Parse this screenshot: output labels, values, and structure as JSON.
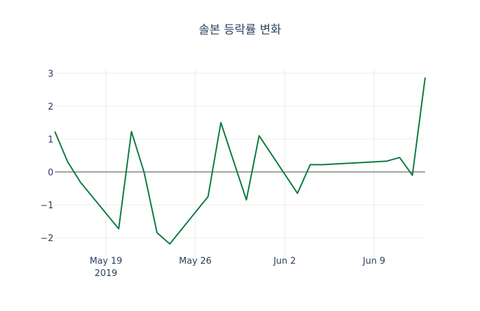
{
  "chart_data": {
    "type": "line",
    "title": "솔본 등락률 변화",
    "xlabel": "",
    "ylabel": "",
    "x": [
      "2019-05-15",
      "2019-05-16",
      "2019-05-17",
      "2019-05-20",
      "2019-05-21",
      "2019-05-22",
      "2019-05-23",
      "2019-05-24",
      "2019-05-27",
      "2019-05-28",
      "2019-05-30",
      "2019-05-31",
      "2019-06-03",
      "2019-06-04",
      "2019-06-05",
      "2019-06-10",
      "2019-06-11",
      "2019-06-12",
      "2019-06-13"
    ],
    "series": [
      {
        "name": "등락률",
        "color": "#0b7a3e",
        "values": [
          1.23,
          0.31,
          -0.31,
          -1.73,
          1.23,
          -0.02,
          -1.85,
          -2.19,
          -0.75,
          1.5,
          -0.85,
          1.1,
          -0.65,
          0.22,
          0.22,
          0.33,
          0.44,
          -0.1,
          2.87
        ]
      }
    ],
    "xlim": [
      "2019-05-15",
      "2019-06-13"
    ],
    "ylim": [
      -2.5,
      3.15
    ],
    "yticks": [
      3,
      2,
      1,
      0,
      -1,
      -2
    ],
    "ytick_labels": [
      "3",
      "2",
      "1",
      "0",
      "−1",
      "−2"
    ],
    "xticks": [
      "2019-05-19",
      "2019-05-26",
      "2019-06-02",
      "2019-06-09"
    ],
    "xtick_labels": [
      "May 19",
      "May 26",
      "Jun 2",
      "Jun 9"
    ],
    "xtick_sublabel": "2019",
    "grid": true
  }
}
